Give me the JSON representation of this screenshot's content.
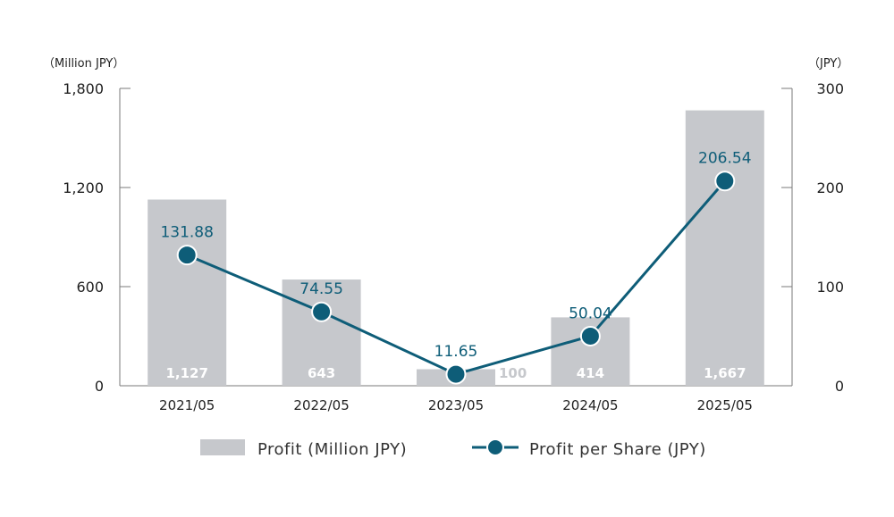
{
  "chart_data": {
    "type": "bar",
    "categories": [
      "2021/05",
      "2022/05",
      "2023/05",
      "2024/05",
      "2025/05"
    ],
    "series": [
      {
        "name": "Profit (Million JPY)",
        "type": "bar",
        "axis": "left",
        "values": [
          1127,
          643,
          100,
          414,
          1667
        ],
        "labels": [
          "1,127",
          "643",
          "100",
          "414",
          "1,667"
        ],
        "color": "#c6c8cc"
      },
      {
        "name": "Profit per Share (JPY)",
        "type": "line",
        "axis": "right",
        "values": [
          131.88,
          74.55,
          11.65,
          50.04,
          206.54
        ],
        "labels": [
          "131.88",
          "74.55",
          "11.65",
          "50.04",
          "206.54"
        ],
        "color": "#0e5d78"
      }
    ],
    "left_axis": {
      "unit": "（Million JPY）",
      "ylim": [
        0,
        1800
      ],
      "ticks": [
        0,
        600,
        1200,
        1800
      ],
      "tick_labels": [
        "0",
        "600",
        "1,200",
        "1,800"
      ]
    },
    "right_axis": {
      "unit": "（JPY）",
      "ylim": [
        0,
        300
      ],
      "ticks": [
        0,
        100,
        200,
        300
      ],
      "tick_labels": [
        "0",
        "100",
        "200",
        "300"
      ]
    },
    "grid": false,
    "legend_position": "bottom"
  }
}
